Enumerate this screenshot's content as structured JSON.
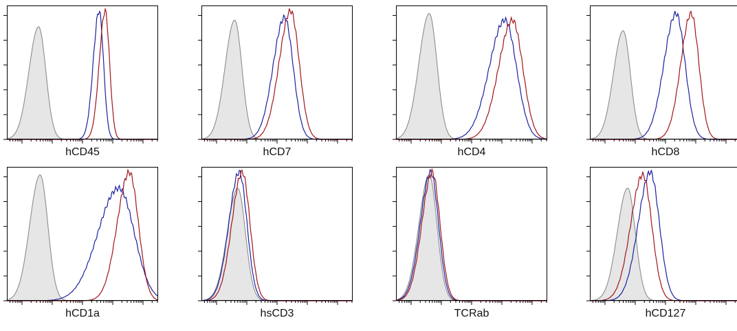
{
  "colors": {
    "isotype_fill": "#e6e6e6",
    "isotype_line": "#8c8c8c",
    "blue": "#1c1f9e",
    "red": "#a0141a"
  },
  "chart_data": [
    {
      "type": "area",
      "xlabel": "hCD45",
      "x_scale": "log",
      "grid": false,
      "series": [
        {
          "role": "isotype",
          "style": "filled-grey",
          "peak_log": 0.55,
          "peak_height": 0.85,
          "width": 0.28
        },
        {
          "role": "blue",
          "style": "line",
          "peak_log": 2.55,
          "peak_height": 0.97,
          "width": 0.17
        },
        {
          "role": "red",
          "style": "line",
          "peak_log": 2.75,
          "peak_height": 0.97,
          "width": 0.17
        }
      ]
    },
    {
      "type": "area",
      "xlabel": "hCD7",
      "x_scale": "log",
      "grid": false,
      "series": [
        {
          "role": "isotype",
          "style": "filled-grey",
          "peak_log": 0.6,
          "peak_height": 0.9,
          "width": 0.28
        },
        {
          "role": "blue",
          "style": "line",
          "peak_log": 2.25,
          "peak_height": 0.92,
          "width": 0.33
        },
        {
          "role": "red",
          "style": "line",
          "peak_log": 2.45,
          "peak_height": 0.97,
          "width": 0.33
        }
      ]
    },
    {
      "type": "area",
      "xlabel": "hCD4",
      "x_scale": "log",
      "grid": false,
      "series": [
        {
          "role": "isotype",
          "style": "filled-grey",
          "peak_log": 0.6,
          "peak_height": 0.95,
          "width": 0.3
        },
        {
          "role": "blue",
          "style": "line",
          "peak_log": 3.1,
          "peak_height": 0.9,
          "width": 0.45
        },
        {
          "role": "red",
          "style": "line",
          "peak_log": 3.35,
          "peak_height": 0.9,
          "width": 0.4
        }
      ]
    },
    {
      "type": "area",
      "xlabel": "hCD8",
      "x_scale": "log",
      "grid": false,
      "series": [
        {
          "role": "isotype",
          "style": "filled-grey",
          "peak_log": 0.6,
          "peak_height": 0.82,
          "width": 0.28
        },
        {
          "role": "blue",
          "style": "line",
          "peak_log": 2.35,
          "peak_height": 0.95,
          "width": 0.35
        },
        {
          "role": "red",
          "style": "line",
          "peak_log": 2.85,
          "peak_height": 0.95,
          "width": 0.3
        }
      ]
    },
    {
      "type": "area",
      "xlabel": "hCD1a",
      "x_scale": "log",
      "grid": false,
      "series": [
        {
          "role": "isotype",
          "style": "filled-grey",
          "peak_log": 0.6,
          "peak_height": 0.95,
          "width": 0.3
        },
        {
          "role": "blue",
          "style": "line",
          "peak_log": 3.2,
          "peak_height": 0.85,
          "width": 0.6
        },
        {
          "role": "red",
          "style": "line",
          "peak_log": 3.55,
          "peak_height": 0.97,
          "width": 0.35
        }
      ]
    },
    {
      "type": "area",
      "xlabel": "hsCD3",
      "x_scale": "log",
      "grid": false,
      "series": [
        {
          "role": "isotype",
          "style": "filled-grey",
          "peak_log": 0.7,
          "peak_height": 0.85,
          "width": 0.3
        },
        {
          "role": "blue",
          "style": "line",
          "peak_log": 0.75,
          "peak_height": 0.97,
          "width": 0.3
        },
        {
          "role": "red",
          "style": "line",
          "peak_log": 0.85,
          "peak_height": 0.97,
          "width": 0.3
        }
      ]
    },
    {
      "type": "area",
      "xlabel": "TCRab",
      "x_scale": "log",
      "grid": false,
      "series": [
        {
          "role": "isotype",
          "style": "filled-grey",
          "peak_log": 0.6,
          "peak_height": 0.95,
          "width": 0.3
        },
        {
          "role": "blue",
          "style": "line",
          "peak_log": 0.65,
          "peak_height": 0.97,
          "width": 0.3
        },
        {
          "role": "red",
          "style": "line",
          "peak_log": 0.7,
          "peak_height": 0.97,
          "width": 0.3
        }
      ]
    },
    {
      "type": "area",
      "xlabel": "hCD127",
      "x_scale": "log",
      "grid": false,
      "series": [
        {
          "role": "isotype",
          "style": "filled-grey",
          "peak_log": 0.75,
          "peak_height": 0.85,
          "width": 0.3
        },
        {
          "role": "blue",
          "style": "line",
          "peak_log": 1.5,
          "peak_height": 0.97,
          "width": 0.35
        },
        {
          "role": "red",
          "style": "line",
          "peak_log": 1.25,
          "peak_height": 0.95,
          "width": 0.35
        }
      ]
    }
  ]
}
